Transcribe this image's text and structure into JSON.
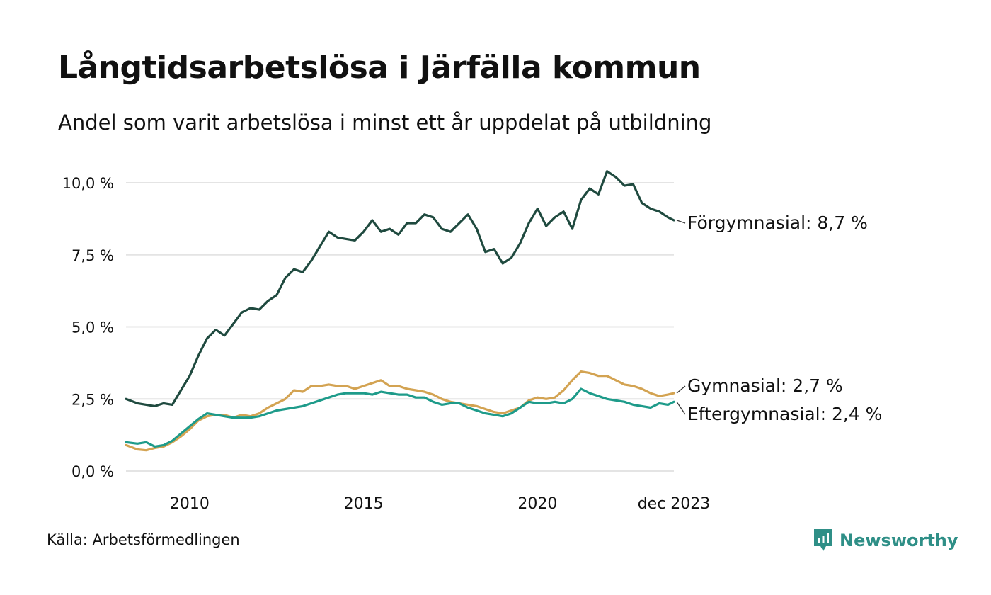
{
  "title": "Långtidsarbetslösa i Järfälla kommun",
  "subtitle": "Andel som varit arbetslösa i minst ett år uppdelat på utbildning",
  "source": "Källa: Arbetsförmedlingen",
  "brand": {
    "name": "Newsworthy",
    "icon": "newsworthy-logo-icon"
  },
  "colors": {
    "forgymnasial": "#1f4a3f",
    "gymnasial": "#d3a352",
    "eftergymnasial": "#1e9b8a",
    "grid": "#e4e4e4",
    "brand": "#2f8f87"
  },
  "chart_data": {
    "type": "line",
    "title": "Långtidsarbetslösa i Järfälla kommun",
    "xlabel": "",
    "ylabel": "",
    "ylim": [
      0,
      10.5
    ],
    "xlim": [
      2008.17,
      2023.92
    ],
    "y_ticks": [
      0,
      2.5,
      5,
      7.5,
      10
    ],
    "y_tick_labels": [
      "0,0 %",
      "2,5 %",
      "5,0 %",
      "7,5 %",
      "10,0 %"
    ],
    "x_ticks": [
      2010,
      2015,
      2020,
      2023.92
    ],
    "x_tick_labels": [
      "2010",
      "2015",
      "2020",
      "dec 2023"
    ],
    "grid": true,
    "series": [
      {
        "key": "forgymnasial",
        "name": "Förgymnasial",
        "end_label": "Förgymnasial: 8,7 %",
        "x": [
          2008.17,
          2008.5,
          2008.75,
          2009.0,
          2009.25,
          2009.5,
          2009.75,
          2010.0,
          2010.25,
          2010.5,
          2010.75,
          2011.0,
          2011.25,
          2011.5,
          2011.75,
          2012.0,
          2012.25,
          2012.5,
          2012.75,
          2013.0,
          2013.25,
          2013.5,
          2013.75,
          2014.0,
          2014.25,
          2014.5,
          2014.75,
          2015.0,
          2015.25,
          2015.5,
          2015.75,
          2016.0,
          2016.25,
          2016.5,
          2016.75,
          2017.0,
          2017.25,
          2017.5,
          2017.75,
          2018.0,
          2018.25,
          2018.5,
          2018.75,
          2019.0,
          2019.25,
          2019.5,
          2019.75,
          2020.0,
          2020.25,
          2020.5,
          2020.75,
          2021.0,
          2021.25,
          2021.5,
          2021.75,
          2022.0,
          2022.25,
          2022.5,
          2022.75,
          2023.0,
          2023.25,
          2023.5,
          2023.75,
          2023.92
        ],
        "values": [
          2.5,
          2.35,
          2.3,
          2.25,
          2.35,
          2.3,
          2.8,
          3.3,
          4.0,
          4.6,
          4.9,
          4.7,
          5.1,
          5.5,
          5.65,
          5.6,
          5.9,
          6.1,
          6.7,
          7.0,
          6.9,
          7.3,
          7.8,
          8.3,
          8.1,
          8.05,
          8.0,
          8.3,
          8.7,
          8.3,
          8.4,
          8.2,
          8.6,
          8.6,
          8.9,
          8.8,
          8.4,
          8.3,
          8.6,
          8.9,
          8.4,
          7.6,
          7.7,
          7.2,
          7.4,
          7.9,
          8.6,
          9.1,
          8.5,
          8.8,
          9.0,
          8.4,
          9.4,
          9.8,
          9.6,
          10.4,
          10.2,
          9.9,
          9.95,
          9.3,
          9.1,
          9.0,
          8.8,
          8.7
        ]
      },
      {
        "key": "gymnasial",
        "name": "Gymnasial",
        "end_label": "Gymnasial: 2,7 %",
        "x": [
          2008.17,
          2008.5,
          2008.75,
          2009.0,
          2009.25,
          2009.5,
          2009.75,
          2010.0,
          2010.25,
          2010.5,
          2010.75,
          2011.0,
          2011.25,
          2011.5,
          2011.75,
          2012.0,
          2012.25,
          2012.5,
          2012.75,
          2013.0,
          2013.25,
          2013.5,
          2013.75,
          2014.0,
          2014.25,
          2014.5,
          2014.75,
          2015.0,
          2015.25,
          2015.5,
          2015.75,
          2016.0,
          2016.25,
          2016.5,
          2016.75,
          2017.0,
          2017.25,
          2017.5,
          2017.75,
          2018.0,
          2018.25,
          2018.5,
          2018.75,
          2019.0,
          2019.25,
          2019.5,
          2019.75,
          2020.0,
          2020.25,
          2020.5,
          2020.75,
          2021.0,
          2021.25,
          2021.5,
          2021.75,
          2022.0,
          2022.25,
          2022.5,
          2022.75,
          2023.0,
          2023.25,
          2023.5,
          2023.75,
          2023.92
        ],
        "values": [
          0.9,
          0.75,
          0.72,
          0.8,
          0.85,
          1.0,
          1.2,
          1.45,
          1.75,
          1.9,
          1.95,
          1.95,
          1.85,
          1.95,
          1.9,
          2.0,
          2.2,
          2.35,
          2.5,
          2.8,
          2.75,
          2.95,
          2.95,
          3.0,
          2.95,
          2.95,
          2.85,
          2.95,
          3.05,
          3.15,
          2.95,
          2.95,
          2.85,
          2.8,
          2.75,
          2.65,
          2.5,
          2.4,
          2.35,
          2.3,
          2.25,
          2.15,
          2.05,
          2.0,
          2.1,
          2.2,
          2.45,
          2.55,
          2.5,
          2.55,
          2.8,
          3.15,
          3.45,
          3.4,
          3.3,
          3.3,
          3.15,
          3.0,
          2.95,
          2.85,
          2.7,
          2.6,
          2.65,
          2.7
        ]
      },
      {
        "key": "eftergymnasial",
        "name": "Eftergymnasial",
        "end_label": "Eftergymnasial: 2,4 %",
        "x": [
          2008.17,
          2008.5,
          2008.75,
          2009.0,
          2009.25,
          2009.5,
          2009.75,
          2010.0,
          2010.25,
          2010.5,
          2010.75,
          2011.0,
          2011.25,
          2011.5,
          2011.75,
          2012.0,
          2012.25,
          2012.5,
          2012.75,
          2013.0,
          2013.25,
          2013.5,
          2013.75,
          2014.0,
          2014.25,
          2014.5,
          2014.75,
          2015.0,
          2015.25,
          2015.5,
          2015.75,
          2016.0,
          2016.25,
          2016.5,
          2016.75,
          2017.0,
          2017.25,
          2017.5,
          2017.75,
          2018.0,
          2018.25,
          2018.5,
          2018.75,
          2019.0,
          2019.25,
          2019.5,
          2019.75,
          2020.0,
          2020.25,
          2020.5,
          2020.75,
          2021.0,
          2021.25,
          2021.5,
          2021.75,
          2022.0,
          2022.25,
          2022.5,
          2022.75,
          2023.0,
          2023.25,
          2023.5,
          2023.75,
          2023.92
        ],
        "values": [
          1.0,
          0.95,
          1.0,
          0.85,
          0.9,
          1.05,
          1.3,
          1.55,
          1.8,
          2.0,
          1.95,
          1.9,
          1.85,
          1.85,
          1.85,
          1.9,
          2.0,
          2.1,
          2.15,
          2.2,
          2.25,
          2.35,
          2.45,
          2.55,
          2.65,
          2.7,
          2.7,
          2.7,
          2.65,
          2.75,
          2.7,
          2.65,
          2.65,
          2.55,
          2.55,
          2.4,
          2.3,
          2.35,
          2.35,
          2.2,
          2.1,
          2.0,
          1.95,
          1.9,
          2.0,
          2.2,
          2.4,
          2.35,
          2.35,
          2.4,
          2.35,
          2.5,
          2.85,
          2.7,
          2.6,
          2.5,
          2.45,
          2.4,
          2.3,
          2.25,
          2.2,
          2.35,
          2.3,
          2.4
        ]
      }
    ]
  }
}
